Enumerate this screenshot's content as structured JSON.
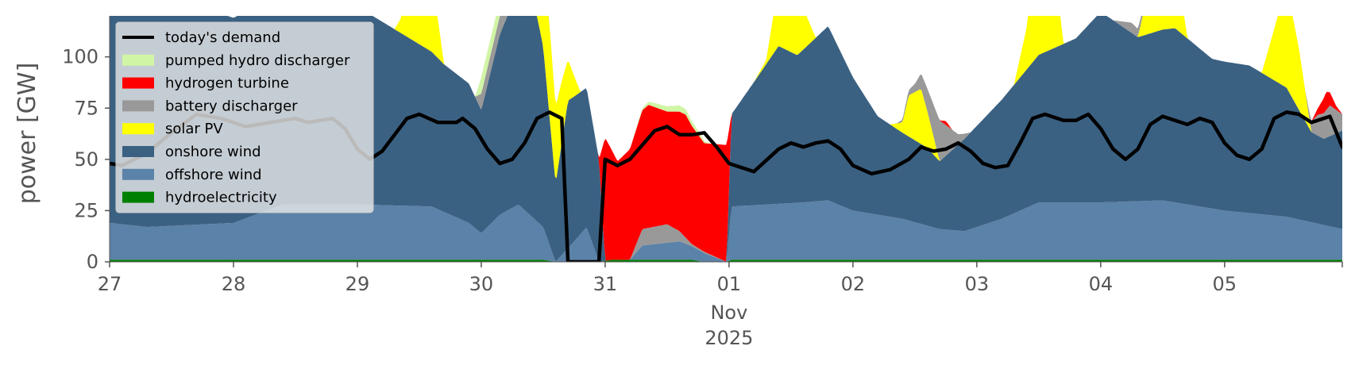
{
  "chart_data": {
    "type": "area",
    "ylabel": "power [GW]",
    "ylim": [
      0,
      120
    ],
    "y_ticks": [
      0,
      25,
      50,
      75,
      100
    ],
    "x_ticks": [
      {
        "label": "27",
        "day": 0
      },
      {
        "label": "28",
        "day": 1
      },
      {
        "label": "29",
        "day": 2
      },
      {
        "label": "30",
        "day": 3
      },
      {
        "label": "31",
        "day": 4
      },
      {
        "label": "01",
        "day": 5
      },
      {
        "label": "02",
        "day": 6
      },
      {
        "label": "03",
        "day": 7
      },
      {
        "label": "04",
        "day": 8
      },
      {
        "label": "05",
        "day": 9
      }
    ],
    "x_sublabels": [
      "Nov",
      "2025"
    ],
    "xlim": [
      0,
      9.95
    ],
    "grid": false,
    "legend_placement": "upper-left",
    "stack_order": [
      "hydroelectricity",
      "offshore wind",
      "onshore wind",
      "solar PV",
      "battery discharger",
      "hydrogen turbine",
      "pumped hydro discharger"
    ],
    "legend_order": [
      "today's demand",
      "pumped hydro discharger",
      "hydrogen turbine",
      "battery discharger",
      "solar PV",
      "onshore wind",
      "offshore wind",
      "hydroelectricity"
    ],
    "series": [
      {
        "name": "hydroelectricity",
        "color": "#008000",
        "values": [
          [
            0,
            1
          ],
          [
            3.5,
            1
          ],
          [
            3.6,
            0
          ],
          [
            3.95,
            0
          ],
          [
            4.05,
            1
          ],
          [
            4.7,
            1
          ],
          [
            4.8,
            0
          ],
          [
            4.98,
            0
          ],
          [
            5.02,
            1
          ],
          [
            9.95,
            1
          ]
        ]
      },
      {
        "name": "offshore wind",
        "color": "#5b82a8",
        "values": [
          [
            0,
            18
          ],
          [
            0.3,
            16
          ],
          [
            1,
            18
          ],
          [
            1.4,
            27
          ],
          [
            2,
            27
          ],
          [
            2.6,
            26
          ],
          [
            2.9,
            18
          ],
          [
            3,
            13
          ],
          [
            3.15,
            22
          ],
          [
            3.3,
            27
          ],
          [
            3.5,
            16
          ],
          [
            3.6,
            0
          ],
          [
            3.75,
            10
          ],
          [
            3.85,
            17
          ],
          [
            3.95,
            0
          ],
          [
            4,
            0
          ],
          [
            4.2,
            0
          ],
          [
            4.3,
            7
          ],
          [
            4.6,
            9
          ],
          [
            4.98,
            0
          ],
          [
            5.02,
            26
          ],
          [
            5.6,
            28
          ],
          [
            5.8,
            29
          ],
          [
            6,
            24
          ],
          [
            6.4,
            20
          ],
          [
            6.7,
            15
          ],
          [
            6.9,
            14
          ],
          [
            7.2,
            20
          ],
          [
            7.5,
            28
          ],
          [
            8,
            28
          ],
          [
            8.5,
            29
          ],
          [
            9,
            24
          ],
          [
            9.5,
            21
          ],
          [
            9.95,
            15
          ]
        ]
      },
      {
        "name": "onshore wind",
        "color": "#3b6182",
        "values": [
          [
            0,
            112
          ],
          [
            0.3,
            104
          ],
          [
            0.6,
            110
          ],
          [
            1,
            100
          ],
          [
            1.3,
            103
          ],
          [
            1.4,
            96
          ],
          [
            1.6,
            105
          ],
          [
            1.9,
            100
          ],
          [
            2.3,
            86
          ],
          [
            2.7,
            72
          ],
          [
            2.9,
            68
          ],
          [
            3,
            60
          ],
          [
            3.15,
            88
          ],
          [
            3.3,
            105
          ],
          [
            3.4,
            112
          ],
          [
            3.5,
            88
          ],
          [
            3.6,
            38
          ],
          [
            3.7,
            72
          ],
          [
            3.85,
            68
          ],
          [
            3.95,
            50
          ],
          [
            4,
            0
          ],
          [
            4.98,
            0
          ],
          [
            5.02,
            45
          ],
          [
            5.2,
            60
          ],
          [
            5.4,
            77
          ],
          [
            5.55,
            72
          ],
          [
            5.8,
            85
          ],
          [
            6,
            65
          ],
          [
            6.2,
            48
          ],
          [
            6.4,
            42
          ],
          [
            6.6,
            38
          ],
          [
            6.7,
            33
          ],
          [
            6.9,
            45
          ],
          [
            7.2,
            58
          ],
          [
            7.5,
            72
          ],
          [
            7.8,
            80
          ],
          [
            8,
            93
          ],
          [
            8.3,
            80
          ],
          [
            8.6,
            85
          ],
          [
            8.9,
            73
          ],
          [
            9.2,
            72
          ],
          [
            9.5,
            63
          ],
          [
            9.7,
            44
          ],
          [
            9.8,
            42
          ],
          [
            9.95,
            48
          ]
        ]
      },
      {
        "name": "solar PV",
        "color": "#ffff00",
        "values": [
          [
            0,
            0
          ],
          [
            0.35,
            0
          ],
          [
            0.45,
            50
          ],
          [
            0.55,
            50
          ],
          [
            0.7,
            0
          ],
          [
            1.3,
            0
          ],
          [
            1.4,
            50
          ],
          [
            1.5,
            52
          ],
          [
            1.7,
            0
          ],
          [
            2.3,
            0
          ],
          [
            2.35,
            7
          ],
          [
            2.45,
            60
          ],
          [
            2.55,
            56
          ],
          [
            2.7,
            0
          ],
          [
            3.3,
            0
          ],
          [
            3.35,
            10
          ],
          [
            3.45,
            22
          ],
          [
            3.55,
            45
          ],
          [
            3.65,
            30
          ],
          [
            3.8,
            0
          ],
          [
            5.2,
            0
          ],
          [
            5.3,
            2
          ],
          [
            5.45,
            45
          ],
          [
            5.55,
            30
          ],
          [
            5.7,
            0
          ],
          [
            6.3,
            0
          ],
          [
            6.4,
            5
          ],
          [
            6.45,
            20
          ],
          [
            6.55,
            27
          ],
          [
            6.7,
            0
          ],
          [
            7.3,
            0
          ],
          [
            7.4,
            20
          ],
          [
            7.5,
            60
          ],
          [
            7.6,
            55
          ],
          [
            7.7,
            0
          ],
          [
            8.3,
            0
          ],
          [
            8.4,
            25
          ],
          [
            8.5,
            60
          ],
          [
            8.55,
            55
          ],
          [
            8.7,
            0
          ],
          [
            9.3,
            0
          ],
          [
            9.4,
            25
          ],
          [
            9.5,
            50
          ],
          [
            9.6,
            30
          ],
          [
            9.7,
            0
          ],
          [
            9.95,
            0
          ]
        ]
      },
      {
        "name": "battery discharger",
        "color": "#999999",
        "values": [
          [
            0,
            0
          ],
          [
            2.35,
            0
          ],
          [
            2.4,
            4
          ],
          [
            2.5,
            0
          ],
          [
            2.95,
            0
          ],
          [
            3,
            8
          ],
          [
            3.15,
            9
          ],
          [
            3.35,
            18
          ],
          [
            3.45,
            12
          ],
          [
            3.55,
            0
          ],
          [
            4,
            0
          ],
          [
            4.2,
            0
          ],
          [
            4.3,
            8
          ],
          [
            4.5,
            9
          ],
          [
            4.7,
            1
          ],
          [
            4.98,
            0
          ],
          [
            6.35,
            0
          ],
          [
            6.5,
            4
          ],
          [
            6.6,
            11
          ],
          [
            6.7,
            20
          ],
          [
            6.85,
            5
          ],
          [
            6.95,
            0
          ],
          [
            8.1,
            0
          ],
          [
            8.25,
            5
          ],
          [
            8.35,
            3
          ],
          [
            8.4,
            0
          ],
          [
            9.65,
            0
          ],
          [
            9.75,
            10
          ],
          [
            9.85,
            15
          ],
          [
            9.95,
            8
          ]
        ]
      },
      {
        "name": "hydrogen turbine",
        "color": "#ff0000",
        "values": [
          [
            0,
            0
          ],
          [
            3.95,
            0
          ],
          [
            4,
            60
          ],
          [
            4.1,
            48
          ],
          [
            4.2,
            54
          ],
          [
            4.35,
            60
          ],
          [
            4.5,
            55
          ],
          [
            4.65,
            60
          ],
          [
            4.8,
            53
          ],
          [
            4.98,
            57
          ],
          [
            5.02,
            0
          ],
          [
            6.7,
            0
          ],
          [
            6.75,
            2
          ],
          [
            6.8,
            0
          ],
          [
            9.7,
            0
          ],
          [
            9.75,
            3
          ],
          [
            9.82,
            9
          ],
          [
            9.9,
            2
          ],
          [
            9.95,
            0
          ]
        ]
      },
      {
        "name": "pumped hydro discharger",
        "color": "#d0f5a5",
        "values": [
          [
            0,
            0
          ],
          [
            2.95,
            0
          ],
          [
            3,
            8
          ],
          [
            3.15,
            8
          ],
          [
            3.25,
            10
          ],
          [
            3.35,
            6
          ],
          [
            3.45,
            0
          ],
          [
            4.2,
            0
          ],
          [
            4.4,
            2
          ],
          [
            4.6,
            3
          ],
          [
            4.75,
            2
          ],
          [
            4.85,
            0
          ],
          [
            9.95,
            0
          ]
        ]
      },
      {
        "name": "today's demand",
        "color": "#000000",
        "type": "line",
        "values": [
          [
            0,
            48
          ],
          [
            0.1,
            47
          ],
          [
            0.3,
            53
          ],
          [
            0.5,
            63
          ],
          [
            0.7,
            72
          ],
          [
            0.9,
            70
          ],
          [
            1.1,
            66
          ],
          [
            1.3,
            68
          ],
          [
            1.5,
            70
          ],
          [
            1.6,
            68
          ],
          [
            1.8,
            70
          ],
          [
            1.9,
            65
          ],
          [
            2,
            55
          ],
          [
            2.1,
            50
          ],
          [
            2.2,
            54
          ],
          [
            2.3,
            62
          ],
          [
            2.4,
            70
          ],
          [
            2.5,
            72
          ],
          [
            2.65,
            68
          ],
          [
            2.8,
            68
          ],
          [
            2.85,
            70
          ],
          [
            2.95,
            65
          ],
          [
            3.05,
            55
          ],
          [
            3.15,
            48
          ],
          [
            3.25,
            50
          ],
          [
            3.35,
            58
          ],
          [
            3.45,
            70
          ],
          [
            3.55,
            73
          ],
          [
            3.65,
            70
          ],
          [
            3.7,
            0
          ],
          [
            3.95,
            0
          ],
          [
            4.0,
            50
          ],
          [
            4.1,
            47
          ],
          [
            4.2,
            50
          ],
          [
            4.3,
            57
          ],
          [
            4.4,
            64
          ],
          [
            4.5,
            66
          ],
          [
            4.6,
            62
          ],
          [
            4.7,
            62
          ],
          [
            4.8,
            63
          ],
          [
            4.9,
            56
          ],
          [
            5.0,
            48
          ],
          [
            5.2,
            44
          ],
          [
            5.4,
            55
          ],
          [
            5.5,
            58
          ],
          [
            5.6,
            56
          ],
          [
            5.7,
            58
          ],
          [
            5.8,
            59
          ],
          [
            5.9,
            55
          ],
          [
            6.0,
            47
          ],
          [
            6.15,
            43
          ],
          [
            6.3,
            45
          ],
          [
            6.45,
            50
          ],
          [
            6.55,
            56
          ],
          [
            6.65,
            54
          ],
          [
            6.75,
            55
          ],
          [
            6.85,
            58
          ],
          [
            6.95,
            54
          ],
          [
            7.05,
            48
          ],
          [
            7.15,
            46
          ],
          [
            7.25,
            47
          ],
          [
            7.35,
            58
          ],
          [
            7.45,
            70
          ],
          [
            7.55,
            72
          ],
          [
            7.7,
            69
          ],
          [
            7.8,
            69
          ],
          [
            7.9,
            72
          ],
          [
            8.0,
            65
          ],
          [
            8.1,
            55
          ],
          [
            8.2,
            50
          ],
          [
            8.3,
            55
          ],
          [
            8.4,
            67
          ],
          [
            8.5,
            71
          ],
          [
            8.6,
            69
          ],
          [
            8.7,
            67
          ],
          [
            8.8,
            70
          ],
          [
            8.9,
            68
          ],
          [
            9.0,
            58
          ],
          [
            9.1,
            52
          ],
          [
            9.2,
            50
          ],
          [
            9.3,
            55
          ],
          [
            9.4,
            70
          ],
          [
            9.5,
            73
          ],
          [
            9.6,
            72
          ],
          [
            9.7,
            68
          ],
          [
            9.8,
            70
          ],
          [
            9.85,
            71
          ],
          [
            9.95,
            56
          ]
        ]
      }
    ]
  }
}
